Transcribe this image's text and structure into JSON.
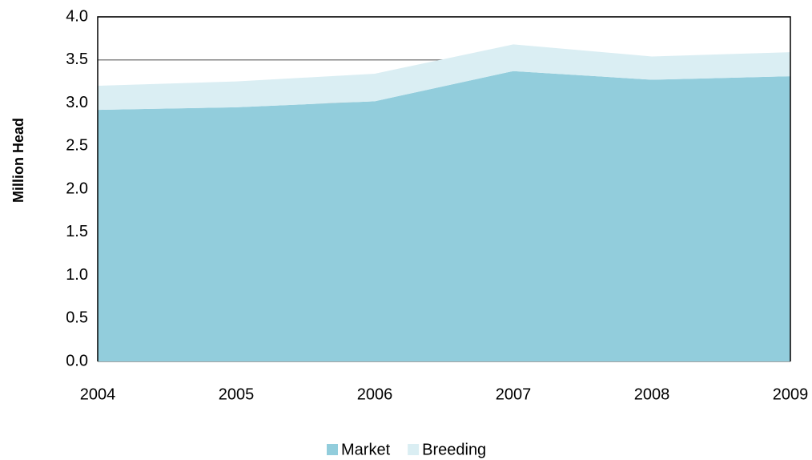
{
  "chart_data": {
    "type": "area",
    "stacked": true,
    "ylabel": "Million Head",
    "categories": [
      "2004",
      "2005",
      "2006",
      "2007",
      "2008",
      "2009"
    ],
    "series": [
      {
        "name": "Market",
        "color": "#92cddc",
        "values": [
          2.92,
          2.95,
          3.02,
          3.37,
          3.27,
          3.31
        ]
      },
      {
        "name": "Breeding",
        "color": "#daeef3",
        "values": [
          0.28,
          0.3,
          0.32,
          0.31,
          0.27,
          0.28
        ]
      }
    ],
    "ylim": [
      0,
      4.0
    ],
    "yticks": [
      {
        "value": 0,
        "label": "0.0"
      },
      0.5,
      {
        "value": 1,
        "label": "1.0"
      },
      1.5,
      {
        "value": 2,
        "label": "2.0"
      },
      2.5,
      {
        "value": 3,
        "label": "3.0"
      },
      3.5,
      {
        "value": 4,
        "label": "4.0"
      }
    ],
    "grid": true,
    "legend": "bottom"
  }
}
